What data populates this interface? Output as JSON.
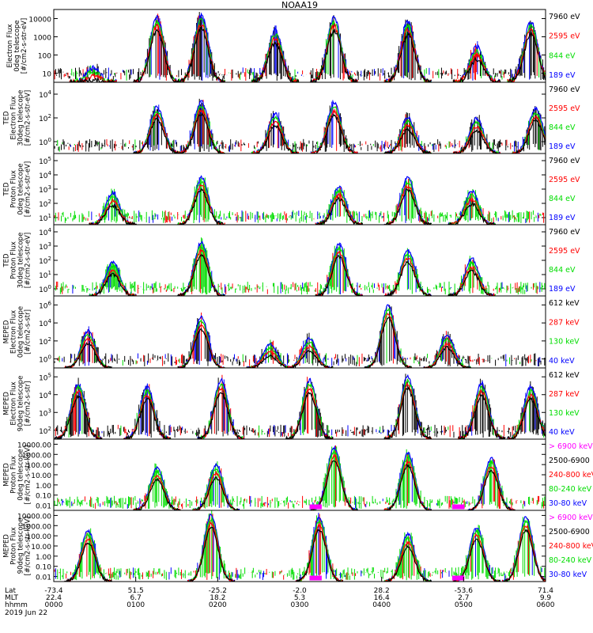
{
  "title": "NOAA19",
  "colors": {
    "black": "#000000",
    "red": "#ff0000",
    "green": "#00dd00",
    "blue": "#0000ff",
    "magenta": "#ff00ff"
  },
  "chart_data": [
    {
      "type": "line",
      "ylabel": [
        "Electron Flux",
        "0deg telescope",
        "[#/cm2-s-str-eV]"
      ],
      "instrument": "",
      "ylog": true,
      "yticks": [
        "10",
        "100",
        "1000",
        "10000"
      ],
      "ylim_exp": [
        0.5,
        4
      ],
      "series": [
        {
          "name": "7960 eV",
          "color": "black"
        },
        {
          "name": "2595 eV",
          "color": "red"
        },
        {
          "name": "844 eV",
          "color": "green"
        },
        {
          "name": "189 eV",
          "color": "blue"
        }
      ],
      "peaks": [
        [
          0.08,
          1.2,
          "g"
        ],
        [
          0.21,
          3.6,
          "r"
        ],
        [
          0.3,
          3.7,
          "r"
        ],
        [
          0.45,
          3.0,
          "b"
        ],
        [
          0.57,
          3.6,
          "k"
        ],
        [
          0.72,
          3.4,
          "r"
        ],
        [
          0.86,
          2.2,
          "k"
        ],
        [
          0.97,
          3.4,
          "r"
        ]
      ]
    },
    {
      "type": "line",
      "ylabel": [
        "TED",
        "Electron Flux",
        "30deg telescope",
        "[#/cm2-s-str-eV]"
      ],
      "instrument": "TED",
      "ylog": true,
      "yticks": [
        "10^0",
        "10^2",
        "10^4"
      ],
      "ylim_exp": [
        -0.5,
        5
      ],
      "series": [
        {
          "name": "7960 eV",
          "color": "black"
        },
        {
          "name": "2595 eV",
          "color": "red"
        },
        {
          "name": "844 eV",
          "color": "green"
        },
        {
          "name": "189 eV",
          "color": "blue"
        }
      ],
      "peaks": [
        [
          0.21,
          3.1,
          "g"
        ],
        [
          0.3,
          3.5,
          "r"
        ],
        [
          0.45,
          2.6,
          "b"
        ],
        [
          0.57,
          3.4,
          "k"
        ],
        [
          0.72,
          2.3,
          "r"
        ],
        [
          0.86,
          2.2,
          "b"
        ],
        [
          0.98,
          3.0,
          "r"
        ]
      ]
    },
    {
      "type": "line",
      "ylabel": [
        "TED",
        "Proton Flux",
        "0deg telescope",
        "[#/cm2-s-str-eV]"
      ],
      "instrument": "TED",
      "ylog": true,
      "yticks": [
        "10^1",
        "10^2",
        "10^3",
        "10^4",
        "10^5"
      ],
      "ylim_exp": [
        0.5,
        5.2
      ],
      "series": [
        {
          "name": "7960 eV",
          "color": "black"
        },
        {
          "name": "2595 eV",
          "color": "red"
        },
        {
          "name": "844 eV",
          "color": "green"
        },
        {
          "name": "189 eV",
          "color": "blue"
        }
      ],
      "peaks": [
        [
          0.12,
          2.6,
          "g"
        ],
        [
          0.3,
          3.6,
          "b"
        ],
        [
          0.58,
          3.0,
          "b"
        ],
        [
          0.72,
          3.6,
          "b"
        ],
        [
          0.85,
          2.7,
          "b"
        ]
      ]
    },
    {
      "type": "line",
      "ylabel": [
        "TED",
        "Proton Flux",
        "30deg telescope",
        "[#/cm2-s-str-eV]"
      ],
      "instrument": "TED",
      "ylog": true,
      "yticks": [
        "10^0",
        "10^1",
        "10^2",
        "10^3",
        "10^4"
      ],
      "ylim_exp": [
        -0.3,
        4.5
      ],
      "series": [
        {
          "name": "7960 eV",
          "color": "black"
        },
        {
          "name": "2595 eV",
          "color": "red"
        },
        {
          "name": "844 eV",
          "color": "green"
        },
        {
          "name": "189 eV",
          "color": "blue"
        }
      ],
      "peaks": [
        [
          0.12,
          2.0,
          "g"
        ],
        [
          0.3,
          3.3,
          "b"
        ],
        [
          0.58,
          3.2,
          "b"
        ],
        [
          0.72,
          2.8,
          "b"
        ],
        [
          0.85,
          2.2,
          "b"
        ]
      ]
    },
    {
      "type": "line",
      "ylabel": [
        "MEPED",
        "Electron Flux",
        "0deg telescope",
        "[#/cm2-s-str]"
      ],
      "instrument": "MEPED",
      "ylog": true,
      "yticks": [
        "10^0",
        "10^2",
        "10^4",
        "10^6"
      ],
      "ylim_exp": [
        -0.3,
        6.5
      ],
      "series": [
        {
          "name": "612 keV",
          "color": "black"
        },
        {
          "name": "287 keV",
          "color": "red"
        },
        {
          "name": "130 keV",
          "color": "green"
        },
        {
          "name": "40 keV",
          "color": "blue"
        }
      ],
      "peaks": [
        [
          0.07,
          3.2,
          "b"
        ],
        [
          0.3,
          4.5,
          "b"
        ],
        [
          0.44,
          2.0,
          "b"
        ],
        [
          0.52,
          2.5,
          "r"
        ],
        [
          0.68,
          5.6,
          "b"
        ],
        [
          0.8,
          2.8,
          "r"
        ]
      ]
    },
    {
      "type": "line",
      "ylabel": [
        "MEPED",
        "Electron Flux",
        "90deg telescope",
        "[#/cm2-s-str]"
      ],
      "instrument": "MEPED",
      "ylog": true,
      "yticks": [
        "10^2",
        "10^3",
        "10^4",
        "10^5"
      ],
      "ylim_exp": [
        1.6,
        5.7
      ],
      "series": [
        {
          "name": "612 keV",
          "color": "black"
        },
        {
          "name": "287 keV",
          "color": "red"
        },
        {
          "name": "130 keV",
          "color": "green"
        },
        {
          "name": "40 keV",
          "color": "blue"
        }
      ],
      "peaks": [
        [
          0.05,
          4.8,
          "b"
        ],
        [
          0.19,
          4.6,
          "b"
        ],
        [
          0.34,
          5.0,
          "b"
        ],
        [
          0.52,
          5.0,
          "b"
        ],
        [
          0.72,
          5.2,
          "b"
        ],
        [
          0.87,
          4.8,
          "b"
        ],
        [
          0.97,
          4.6,
          "b"
        ]
      ]
    },
    {
      "type": "line",
      "ylabel": [
        "MEPED",
        "Proton Flux",
        "0deg telescope",
        "[#/cm2-s-str-keV]"
      ],
      "instrument": "MEPED",
      "ylog": true,
      "yticks": [
        "0.01",
        "0.10",
        "1.00",
        "10.00",
        "100.00",
        "1000.00",
        "10000.00"
      ],
      "ylim_exp": [
        -2,
        4
      ],
      "series": [
        {
          "name": "> 6900 keV",
          "color": "magenta"
        },
        {
          "name": "2500-6900",
          "color": "black"
        },
        {
          "name": "240-800 keV",
          "color": "red"
        },
        {
          "name": "80-240 keV",
          "color": "green"
        },
        {
          "name": "30-80 keV",
          "color": "blue"
        }
      ],
      "peaks": [
        [
          0.21,
          1.6,
          "b"
        ],
        [
          0.33,
          1.8,
          "b"
        ],
        [
          0.57,
          3.3,
          "b"
        ],
        [
          0.72,
          2.8,
          "b"
        ],
        [
          0.89,
          2.4,
          "b"
        ]
      ]
    },
    {
      "type": "line",
      "ylabel": [
        "MEPED",
        "Proton Flux",
        "90deg telescope",
        "[#/cm2-s-str-keV]"
      ],
      "instrument": "MEPED",
      "ylog": true,
      "yticks": [
        "0.01",
        "0.10",
        "1.00",
        "10.00",
        "100.00",
        "1000.00",
        "10000.00"
      ],
      "ylim_exp": [
        -2,
        4
      ],
      "series": [
        {
          "name": "> 6900 keV",
          "color": "magenta"
        },
        {
          "name": "2500-6900",
          "color": "black"
        },
        {
          "name": "240-800 keV",
          "color": "red"
        },
        {
          "name": "80-240 keV",
          "color": "green"
        },
        {
          "name": "30-80 keV",
          "color": "blue"
        }
      ],
      "peaks": [
        [
          0.07,
          2.3,
          "b"
        ],
        [
          0.32,
          3.6,
          "b"
        ],
        [
          0.54,
          3.4,
          "b"
        ],
        [
          0.72,
          2.0,
          "b"
        ],
        [
          0.86,
          2.6,
          "b"
        ],
        [
          0.96,
          3.4,
          "b"
        ]
      ]
    }
  ],
  "xaxis": {
    "labels": [
      "Lat",
      "MLT",
      "hhmm"
    ],
    "ticks": [
      {
        "lat": "-73.4",
        "mlt": "22.4",
        "hhmm": "0000"
      },
      {
        "lat": "51.5",
        "mlt": "6.7",
        "hhmm": "0100"
      },
      {
        "lat": "-25.2",
        "mlt": "18.2",
        "hhmm": "0200"
      },
      {
        "lat": "-2.0",
        "mlt": "5.3",
        "hhmm": "0300"
      },
      {
        "lat": "28.2",
        "mlt": "16.4",
        "hhmm": "0400"
      },
      {
        "lat": "-53.6",
        "mlt": "2.7",
        "hhmm": "0500"
      },
      {
        "lat": "71.4",
        "mlt": "9.9",
        "hhmm": "0600"
      }
    ],
    "date": "2019 Jun 22"
  }
}
